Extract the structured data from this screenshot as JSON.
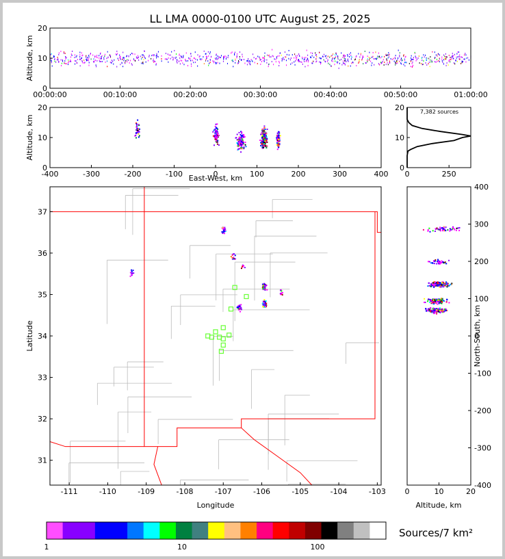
{
  "title": "LL LMA 0000-0100 UTC August 25, 2025",
  "sources_note": "7,382 sources",
  "colorbar_label": "Sources/7 km²",
  "colorbar_ticks": [
    "1",
    "10",
    "100"
  ],
  "colorbar_colors": [
    "#ff4dff",
    "#8800ff",
    "#8800ff",
    "#0000ff",
    "#0000ff",
    "#0077ff",
    "#00ffff",
    "#00ff00",
    "#008040",
    "#408080",
    "#ffff00",
    "#ffc080",
    "#ff8000",
    "#ff0080",
    "#ff0000",
    "#c00000",
    "#800000",
    "#000000",
    "#808080",
    "#c0c0c0",
    "#ffffff"
  ],
  "chart_data": [
    {
      "type": "scatter",
      "name": "time-height",
      "title": "LL LMA 0000-0100 UTC August 25, 2025",
      "ylabel": "Altitude, km",
      "xlim_minutes": [
        0,
        60
      ],
      "ylim": [
        0,
        20
      ],
      "x_tick_labels": [
        "00:00:00",
        "00:10:00",
        "00:20:00",
        "00:30:00",
        "00:40:00",
        "00:50:00",
        "01:00:00"
      ],
      "y_ticks": [
        0,
        10,
        20
      ]
    },
    {
      "type": "scatter",
      "name": "east-west-altitude",
      "xlabel": "East-West, km",
      "ylabel": "Altitude, km",
      "xlim": [
        -400,
        400
      ],
      "ylim": [
        0,
        20
      ],
      "x_ticks": [
        -400,
        -300,
        -200,
        -100,
        0,
        100,
        200,
        300,
        400
      ],
      "y_ticks": [
        0,
        10,
        20
      ],
      "clusters": [
        {
          "x": -190,
          "alt": 13
        },
        {
          "x": 0,
          "alt": 11
        },
        {
          "x": 60,
          "alt": 9
        },
        {
          "x": 115,
          "alt": 10
        },
        {
          "x": 150,
          "alt": 9.5
        }
      ]
    },
    {
      "type": "line",
      "name": "altitude-histogram",
      "ylim": [
        0,
        20
      ],
      "xlim": [
        0,
        380
      ],
      "x_ticks": [
        0,
        250
      ],
      "y_ticks": [
        0,
        10,
        20
      ],
      "altitude": [
        0,
        4,
        5.5,
        6,
        7,
        8,
        9,
        10,
        10.5,
        11,
        12,
        13,
        14,
        15,
        16,
        20
      ],
      "count": [
        0,
        0,
        5,
        20,
        60,
        150,
        280,
        330,
        380,
        330,
        200,
        90,
        30,
        10,
        0,
        0
      ]
    },
    {
      "type": "scatter",
      "name": "plan-view",
      "xlabel": "Longitude",
      "ylabel": "Latitude",
      "xlim": [
        -111.5,
        -102.9
      ],
      "ylim": [
        30.4,
        37.6
      ],
      "x_ticks": [
        -111,
        -110,
        -109,
        -108,
        -107,
        -106,
        -105,
        -104,
        -103
      ],
      "y_ticks": [
        31,
        32,
        33,
        34,
        35,
        36,
        37
      ],
      "clusters": [
        {
          "lon": -107.0,
          "lat": 36.57
        },
        {
          "lon": -109.4,
          "lat": 35.55
        },
        {
          "lon": -106.75,
          "lat": 35.9
        },
        {
          "lon": -106.5,
          "lat": 35.7
        },
        {
          "lon": -105.95,
          "lat": 35.2
        },
        {
          "lon": -105.5,
          "lat": 35.05
        },
        {
          "lon": -105.95,
          "lat": 34.8
        },
        {
          "lon": -106.6,
          "lat": 34.7
        }
      ],
      "stations": [
        {
          "lon": -106.7,
          "lat": 35.17
        },
        {
          "lon": -106.4,
          "lat": 34.95
        },
        {
          "lon": -106.8,
          "lat": 34.65
        },
        {
          "lon": -107.0,
          "lat": 34.2
        },
        {
          "lon": -107.2,
          "lat": 34.1
        },
        {
          "lon": -107.4,
          "lat": 34.0
        },
        {
          "lon": -107.3,
          "lat": 33.97
        },
        {
          "lon": -107.1,
          "lat": 33.97
        },
        {
          "lon": -106.85,
          "lat": 34.02
        },
        {
          "lon": -107.0,
          "lat": 33.93
        },
        {
          "lon": -107.0,
          "lat": 33.78
        },
        {
          "lon": -107.05,
          "lat": 33.63
        }
      ]
    },
    {
      "type": "scatter",
      "name": "altitude-north-south",
      "xlabel": "Altitude, km",
      "ylabel": "North-South, km",
      "xlim": [
        0,
        20
      ],
      "ylim": [
        -400,
        400
      ],
      "x_ticks": [
        0,
        10,
        20
      ],
      "y_ticks": [
        -400,
        -300,
        -200,
        -100,
        0,
        100,
        200,
        300,
        400
      ],
      "clusters": [
        {
          "alt": 11,
          "ns": 288
        },
        {
          "alt": 9.5,
          "ns": 200
        },
        {
          "alt": 10,
          "ns": 140
        },
        {
          "alt": 9,
          "ns": 95
        },
        {
          "alt": 9,
          "ns": 70
        }
      ]
    }
  ]
}
